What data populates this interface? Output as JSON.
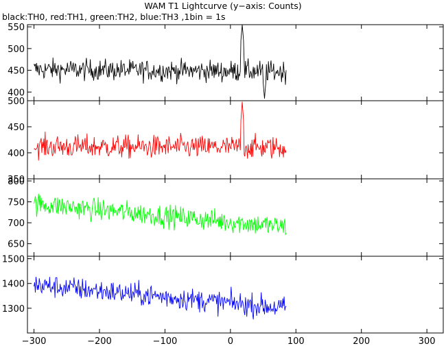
{
  "title": "WAM T1 Lightcurve (y−axis: Counts)",
  "subtitle": "black:TH0, red:TH1, green:TH2, blue:TH3 ,1bin = 1s",
  "chart_data": {
    "type": "line",
    "x_range": [
      -310,
      325
    ],
    "x_ticks": [
      -300,
      -200,
      -100,
      0,
      100,
      200,
      300
    ],
    "x_data_range": [
      -300,
      85
    ],
    "panels": [
      {
        "color": "#000000",
        "y_range": [
          380,
          555
        ],
        "y_ticks": [
          400,
          450,
          500,
          550
        ],
        "baseline_start": 452,
        "baseline_end": 447,
        "noise_amplitude": 24,
        "features": [
          {
            "x": 18,
            "peak": 555
          },
          {
            "x": 52,
            "dip": 385
          }
        ]
      },
      {
        "color": "#ff0000",
        "y_range": [
          350,
          500
        ],
        "y_ticks": [
          350,
          400,
          450,
          500
        ],
        "baseline_start": 412,
        "baseline_end": 410,
        "noise_amplitude": 22,
        "features": [
          {
            "x": 18,
            "peak": 498
          }
        ]
      },
      {
        "color": "#00ff00",
        "y_range": [
          620,
          805
        ],
        "y_ticks": [
          650,
          700,
          750,
          800
        ],
        "baseline_start": 745,
        "baseline_end": 690,
        "noise_amplitude": 26,
        "features": []
      },
      {
        "color": "#0000ff",
        "y_range": [
          1200,
          1510
        ],
        "y_ticks": [
          1300,
          1400,
          1500
        ],
        "baseline_start": 1395,
        "baseline_end": 1300,
        "noise_amplitude": 45,
        "features": []
      }
    ]
  }
}
